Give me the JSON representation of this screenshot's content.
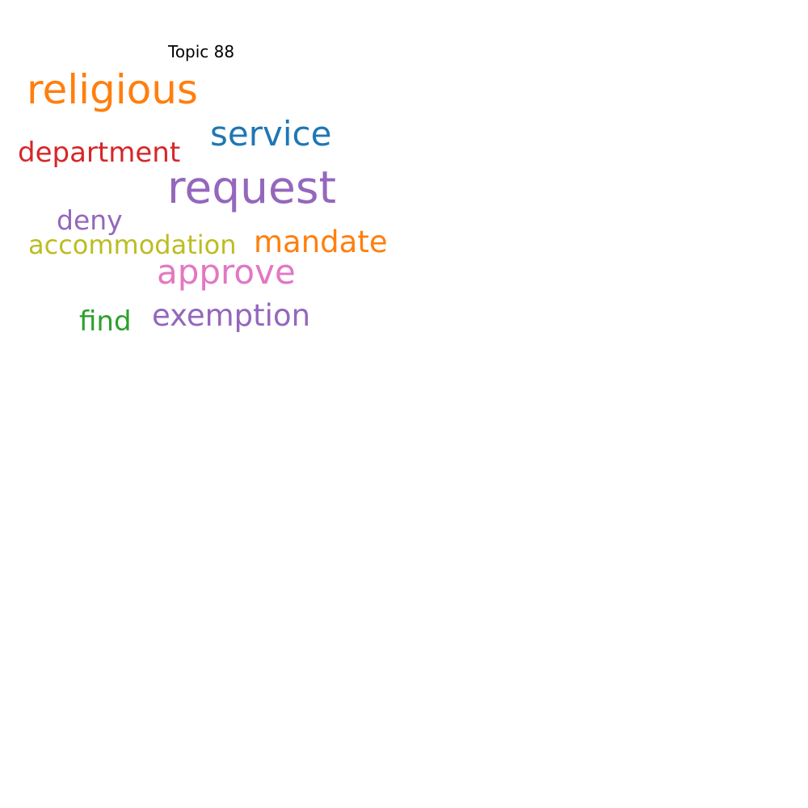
{
  "title": "Topic 88",
  "words": {
    "religious": {
      "text": "religious",
      "color": "#ff7f0e"
    },
    "service": {
      "text": "service",
      "color": "#1f77b4"
    },
    "department": {
      "text": "department",
      "color": "#d62728"
    },
    "request": {
      "text": "request",
      "color": "#9467bd"
    },
    "deny": {
      "text": "deny",
      "color": "#9467bd"
    },
    "accommodation": {
      "text": "accommodation",
      "color": "#bcbd22"
    },
    "mandate": {
      "text": "mandate",
      "color": "#ff7f0e"
    },
    "approve": {
      "text": "approve",
      "color": "#e377c2"
    },
    "exemption": {
      "text": "exemption",
      "color": "#9467bd"
    },
    "find": {
      "text": "find",
      "color": "#2ca02c"
    }
  }
}
